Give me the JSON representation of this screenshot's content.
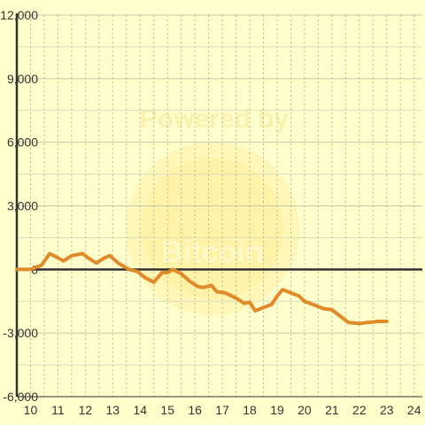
{
  "chart_data": {
    "type": "line",
    "title": "",
    "xlabel": "",
    "ylabel": "",
    "xlim": [
      9.5,
      24.3
    ],
    "ylim": [
      -6000,
      12000
    ],
    "x_ticks": [
      10,
      11,
      12,
      13,
      14,
      15,
      16,
      17,
      18,
      19,
      20,
      21,
      22,
      23,
      24
    ],
    "y_ticks": [
      12000,
      9000,
      6000,
      3000,
      0,
      -3000,
      -6000
    ],
    "x_tick_labels": [
      "10",
      "11",
      "12",
      "13",
      "14",
      "15",
      "16",
      "17",
      "18",
      "19",
      "20",
      "21",
      "22",
      "23",
      "24"
    ],
    "y_tick_labels": [
      "12,000",
      "9,000",
      "6,000",
      "3,000",
      "0",
      "-3,000",
      "-6,000"
    ],
    "grid": true,
    "series": [
      {
        "color": "#e08a2a",
        "x": [
          9.5,
          10.0,
          10.4,
          10.7,
          11.0,
          11.2,
          11.5,
          11.9,
          12.1,
          12.4,
          12.7,
          12.9,
          13.2,
          13.6,
          13.9,
          14.2,
          14.5,
          14.8,
          15.0,
          15.2,
          15.5,
          15.8,
          16.1,
          16.3,
          16.6,
          16.8,
          17.1,
          17.5,
          17.8,
          18.0,
          18.2,
          18.5,
          18.8,
          19.0,
          19.2,
          19.5,
          19.8,
          20.0,
          20.4,
          20.7,
          21.0,
          21.3,
          21.6,
          22.0,
          22.3,
          22.7,
          23.0
        ],
        "y": [
          0,
          0,
          200,
          750,
          550,
          400,
          650,
          750,
          550,
          300,
          550,
          650,
          300,
          0,
          -100,
          -400,
          -600,
          -150,
          -150,
          0,
          -200,
          -550,
          -800,
          -850,
          -750,
          -1050,
          -1100,
          -1350,
          -1600,
          -1550,
          -1950,
          -1800,
          -1650,
          -1250,
          -950,
          -1100,
          -1250,
          -1500,
          -1700,
          -1850,
          -1900,
          -2200,
          -2500,
          -2550,
          -2500,
          -2450,
          -2450
        ]
      }
    ]
  },
  "watermark": {
    "line1": "Powered by",
    "line2": "Bitcoin"
  }
}
